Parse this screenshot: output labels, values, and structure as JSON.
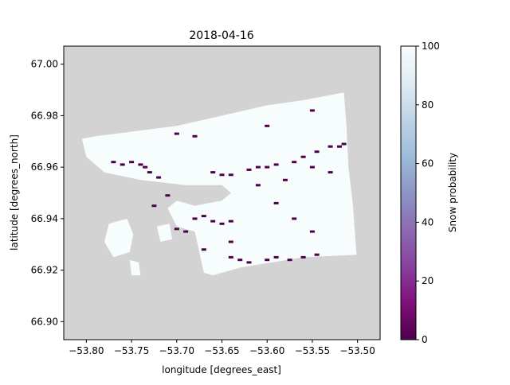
{
  "chart_data": {
    "type": "heatmap",
    "title": "2018-04-16",
    "xlabel": "longitude [degrees_east]",
    "ylabel": "latitude [degrees_north]",
    "xlim": [
      -53.825,
      -53.475
    ],
    "ylim": [
      66.893,
      67.007
    ],
    "x_ticks": [
      -53.8,
      -53.75,
      -53.7,
      -53.65,
      -53.6,
      -53.55,
      -53.5
    ],
    "x_tick_labels": [
      "−53.80",
      "−53.75",
      "−53.70",
      "−53.65",
      "−53.60",
      "−53.55",
      "−53.50"
    ],
    "y_ticks": [
      66.9,
      66.92,
      66.94,
      66.96,
      66.98,
      67.0
    ],
    "y_tick_labels": [
      "66.90",
      "66.92",
      "66.94",
      "66.96",
      "66.98",
      "67.00"
    ],
    "background_color": "#d3d3d3",
    "colormap": "BuPu",
    "colorbar": {
      "label": "Snow probability",
      "range": [
        0,
        100
      ],
      "ticks": [
        0,
        20,
        40,
        60,
        80,
        100
      ],
      "tick_labels": [
        "0",
        "20",
        "40",
        "60",
        "80",
        "100"
      ],
      "stops": [
        "#4d004b",
        "#810f7c",
        "#88419d",
        "#8c6bb1",
        "#8c96c6",
        "#9ebcda",
        "#bfd3e6",
        "#e0ecf4",
        "#f7fcfd"
      ]
    },
    "snow_region": {
      "value": 100,
      "polygon": [
        [
          -53.805,
          66.971
        ],
        [
          -53.79,
          66.972
        ],
        [
          -53.7,
          66.976
        ],
        [
          -53.65,
          66.98
        ],
        [
          -53.6,
          66.984
        ],
        [
          -53.56,
          66.986
        ],
        [
          -53.53,
          66.988
        ],
        [
          -53.515,
          66.989
        ],
        [
          -53.512,
          66.975
        ],
        [
          -53.51,
          66.96
        ],
        [
          -53.505,
          66.945
        ],
        [
          -53.502,
          66.93
        ],
        [
          -53.501,
          66.926
        ],
        [
          -53.56,
          66.925
        ],
        [
          -53.63,
          66.921
        ],
        [
          -53.66,
          66.918
        ],
        [
          -53.67,
          66.919
        ],
        [
          -53.68,
          66.935
        ],
        [
          -53.7,
          66.937
        ],
        [
          -53.71,
          66.944
        ],
        [
          -53.7,
          66.947
        ],
        [
          -53.68,
          66.945
        ],
        [
          -53.665,
          66.946
        ],
        [
          -53.65,
          66.947
        ],
        [
          -53.64,
          66.95
        ],
        [
          -53.65,
          66.953
        ],
        [
          -53.69,
          66.953
        ],
        [
          -53.74,
          66.955
        ],
        [
          -53.78,
          66.958
        ],
        [
          -53.8,
          66.964
        ]
      ],
      "islands": [
        [
          [
            -53.775,
            66.938
          ],
          [
            -53.755,
            66.94
          ],
          [
            -53.748,
            66.934
          ],
          [
            -53.752,
            66.927
          ],
          [
            -53.77,
            66.925
          ],
          [
            -53.78,
            66.931
          ]
        ],
        [
          [
            -53.752,
            66.924
          ],
          [
            -53.742,
            66.923
          ],
          [
            -53.74,
            66.918
          ],
          [
            -53.75,
            66.918
          ]
        ],
        [
          [
            -53.722,
            66.937
          ],
          [
            -53.708,
            66.938
          ],
          [
            -53.705,
            66.932
          ],
          [
            -53.718,
            66.931
          ]
        ]
      ]
    },
    "low_snow_patches": {
      "value": 0,
      "points": [
        [
          -53.77,
          66.962
        ],
        [
          -53.76,
          66.961
        ],
        [
          -53.75,
          66.962
        ],
        [
          -53.74,
          66.961
        ],
        [
          -53.735,
          66.96
        ],
        [
          -53.73,
          66.958
        ],
        [
          -53.72,
          66.956
        ],
        [
          -53.66,
          66.958
        ],
        [
          -53.65,
          66.957
        ],
        [
          -53.64,
          66.957
        ],
        [
          -53.62,
          66.959
        ],
        [
          -53.61,
          66.96
        ],
        [
          -53.6,
          66.96
        ],
        [
          -53.59,
          66.961
        ],
        [
          -53.57,
          66.962
        ],
        [
          -53.56,
          66.964
        ],
        [
          -53.545,
          66.966
        ],
        [
          -53.53,
          66.968
        ],
        [
          -53.52,
          66.968
        ],
        [
          -53.515,
          66.969
        ],
        [
          -53.68,
          66.94
        ],
        [
          -53.67,
          66.941
        ],
        [
          -53.66,
          66.939
        ],
        [
          -53.65,
          66.938
        ],
        [
          -53.64,
          66.939
        ],
        [
          -53.7,
          66.936
        ],
        [
          -53.69,
          66.935
        ],
        [
          -53.64,
          66.925
        ],
        [
          -53.63,
          66.924
        ],
        [
          -53.62,
          66.923
        ],
        [
          -53.6,
          66.924
        ],
        [
          -53.59,
          66.925
        ],
        [
          -53.575,
          66.924
        ],
        [
          -53.56,
          66.925
        ],
        [
          -53.545,
          66.926
        ],
        [
          -53.61,
          66.953
        ],
        [
          -53.58,
          66.955
        ],
        [
          -53.55,
          66.96
        ],
        [
          -53.7,
          66.973
        ],
        [
          -53.68,
          66.972
        ],
        [
          -53.6,
          66.976
        ],
        [
          -53.55,
          66.982
        ],
        [
          -53.725,
          66.945
        ],
        [
          -53.71,
          66.949
        ],
        [
          -53.59,
          66.946
        ],
        [
          -53.53,
          66.958
        ],
        [
          -53.55,
          66.935
        ],
        [
          -53.57,
          66.94
        ],
        [
          -53.64,
          66.931
        ],
        [
          -53.67,
          66.928
        ]
      ]
    }
  }
}
